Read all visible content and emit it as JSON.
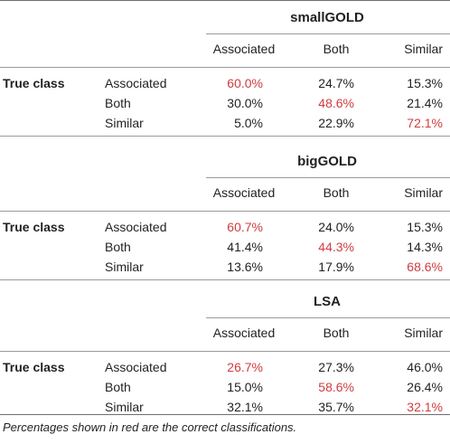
{
  "sections": [
    {
      "title": "smallGOLD",
      "columns": [
        "Associated",
        "Both",
        "Similar"
      ],
      "row_group_label": "True class",
      "rows": [
        {
          "label": "Associated",
          "values": [
            "60.0%",
            "24.7%",
            "15.3%"
          ],
          "correct_index": 0
        },
        {
          "label": "Both",
          "values": [
            "30.0%",
            "48.6%",
            "21.4%"
          ],
          "correct_index": 1
        },
        {
          "label": "Similar",
          "values": [
            "5.0%",
            "22.9%",
            "72.1%"
          ],
          "correct_index": 2
        }
      ]
    },
    {
      "title": "bigGOLD",
      "columns": [
        "Associated",
        "Both",
        "Similar"
      ],
      "row_group_label": "True class",
      "rows": [
        {
          "label": "Associated",
          "values": [
            "60.7%",
            "24.0%",
            "15.3%"
          ],
          "correct_index": 0
        },
        {
          "label": "Both",
          "values": [
            "41.4%",
            "44.3%",
            "14.3%"
          ],
          "correct_index": 1
        },
        {
          "label": "Similar",
          "values": [
            "13.6%",
            "17.9%",
            "68.6%"
          ],
          "correct_index": 2
        }
      ]
    },
    {
      "title": "LSA",
      "columns": [
        "Associated",
        "Both",
        "Similar"
      ],
      "row_group_label": "True class",
      "rows": [
        {
          "label": "Associated",
          "values": [
            "26.7%",
            "27.3%",
            "46.0%"
          ],
          "correct_index": 0
        },
        {
          "label": "Both",
          "values": [
            "15.0%",
            "58.6%",
            "26.4%"
          ],
          "correct_index": 1
        },
        {
          "label": "Similar",
          "values": [
            "32.1%",
            "35.7%",
            "32.1%"
          ],
          "correct_index": 2
        }
      ]
    }
  ],
  "caption": "Percentages shown in red are the correct classifications.",
  "colors": {
    "correct": "#d13b3f",
    "text": "#231f20",
    "rule": "#9a9a9a"
  }
}
